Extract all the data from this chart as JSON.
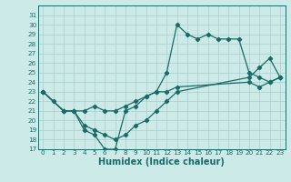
{
  "xlabel": "Humidex (Indice chaleur)",
  "bg_color": "#cceae8",
  "grid_color": "#aaccca",
  "line_color": "#1a6b68",
  "xlim": [
    -0.5,
    23.5
  ],
  "ylim": [
    17,
    32
  ],
  "xticks": [
    0,
    1,
    2,
    3,
    4,
    5,
    6,
    7,
    8,
    9,
    10,
    11,
    12,
    13,
    14,
    15,
    16,
    17,
    18,
    19,
    20,
    21,
    22,
    23
  ],
  "yticks": [
    17,
    18,
    19,
    20,
    21,
    22,
    23,
    24,
    25,
    26,
    27,
    28,
    29,
    30,
    31
  ],
  "line1_x": [
    0,
    1,
    2,
    3,
    4,
    5,
    6,
    7,
    8,
    9,
    10,
    11,
    12,
    13,
    14,
    15,
    16,
    17,
    18,
    19,
    20,
    21,
    22,
    23
  ],
  "line1_y": [
    23,
    22,
    21,
    21,
    19,
    18.5,
    17,
    17,
    21,
    21.5,
    22.5,
    23,
    25,
    30,
    29,
    28.5,
    29,
    28.5,
    28.5,
    28.5,
    25,
    24.5,
    24,
    24.5
  ],
  "line2_x": [
    0,
    2,
    3,
    4,
    5,
    6,
    7,
    8,
    9,
    10,
    11,
    12,
    13,
    20,
    21,
    22,
    23
  ],
  "line2_y": [
    23,
    21,
    21,
    21,
    21.5,
    21,
    21,
    21.5,
    22,
    22.5,
    23,
    23,
    23.5,
    24,
    23.5,
    24,
    24.5
  ],
  "line3_x": [
    0,
    2,
    3,
    4,
    5,
    6,
    7,
    8,
    9,
    10,
    11,
    12,
    13,
    20,
    21,
    22,
    23
  ],
  "line3_y": [
    23,
    21,
    21,
    19.5,
    19,
    18.5,
    18,
    18.5,
    19.5,
    20,
    21,
    22,
    23,
    24.5,
    25.5,
    26.5,
    24.5
  ]
}
